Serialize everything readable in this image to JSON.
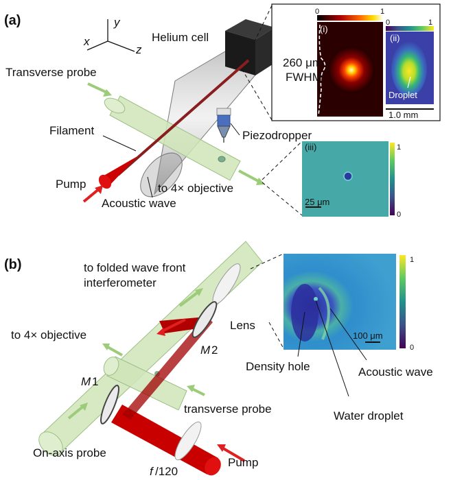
{
  "panel_a": {
    "label": "(a)",
    "axes": {
      "x": "x",
      "y": "y",
      "z": "z"
    },
    "helium_cell": "Helium cell",
    "transverse_probe": "Transverse probe",
    "filament": "Filament",
    "pump": "Pump",
    "acoustic_wave": "Acoustic wave",
    "objective": "to 4× objective",
    "piezodropper": "Piezodropper",
    "inset_i": {
      "tag": "(i)",
      "scale_min": "0",
      "scale_max": "1",
      "fwhm_value": "260 μm",
      "fwhm_label": "FWHM"
    },
    "inset_ii": {
      "tag": "(ii)",
      "scale_min": "0",
      "scale_max": "1",
      "droplet": "Droplet",
      "scalebar": "1.0 mm"
    },
    "inset_iii": {
      "tag": "(iii)",
      "scale_max": "1",
      "scale_min": "0",
      "scalebar": "25 μm"
    }
  },
  "panel_b": {
    "label": "(b)",
    "interferometer_line1": "to folded wave front",
    "interferometer_line2": "interferometer",
    "objective": "to 4× objective",
    "lens": "Lens",
    "m2_letter": "M",
    "m2_index": "2",
    "m1_letter": "M",
    "m1_index": "1",
    "transverse_probe": "transverse probe",
    "on_axis_probe": "On-axis probe",
    "focal_f": "f",
    "focal_rest": "/120",
    "pump": "Pump",
    "inset": {
      "scale_max": "1",
      "scale_min": "0",
      "scalebar": "100 μm"
    },
    "density_hole": "Density hole",
    "water_droplet": "Water droplet",
    "acoustic_wave": "Acoustic wave"
  },
  "colors": {
    "probe_green": "#cfe5b8",
    "pump_red": "#cc0000",
    "viridis_low": "#440154",
    "viridis_high": "#fde725"
  }
}
